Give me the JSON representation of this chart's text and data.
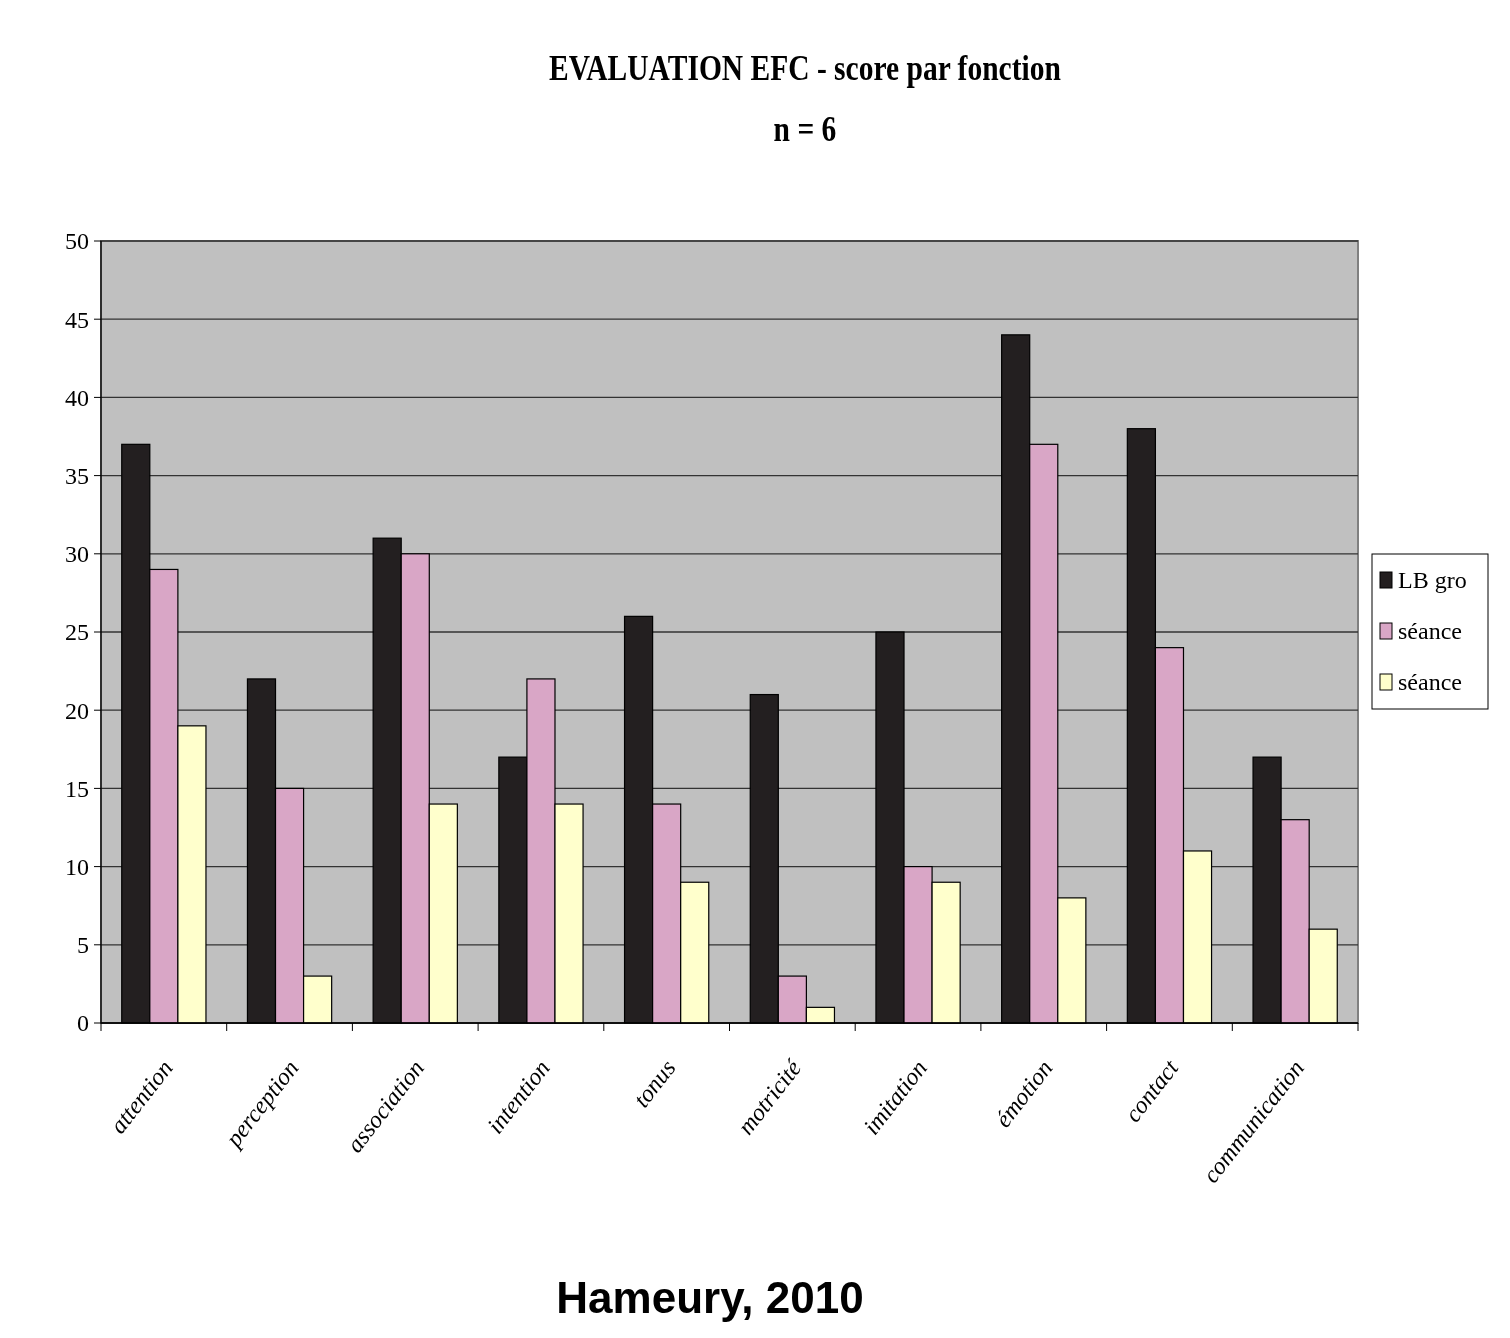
{
  "chart_data": {
    "type": "bar",
    "title": "EVALUATION EFC - score par fonction",
    "subtitle": "n = 6",
    "categories": [
      "attention",
      "perception",
      "association",
      "intention",
      "tonus",
      "motricité",
      "imitation",
      "émotion",
      "contact",
      "communication"
    ],
    "series": [
      {
        "name": "LB gro",
        "color": "#231f20",
        "values": [
          37,
          22,
          31,
          17,
          26,
          21,
          25,
          44,
          38,
          17
        ]
      },
      {
        "name": "séance",
        "color": "#d9a6c6",
        "values": [
          29,
          15,
          30,
          22,
          14,
          3,
          10,
          37,
          24,
          13
        ]
      },
      {
        "name": "séance",
        "color": "#ffffcc",
        "values": [
          19,
          3,
          14,
          14,
          9,
          1,
          9,
          8,
          11,
          6
        ]
      }
    ],
    "ylim": [
      0,
      50
    ],
    "yticks": [
      0,
      5,
      10,
      15,
      20,
      25,
      30,
      35,
      40,
      45,
      50
    ],
    "grid": "y",
    "legend": "right",
    "annotations": [
      "Hameury, 2010"
    ]
  }
}
